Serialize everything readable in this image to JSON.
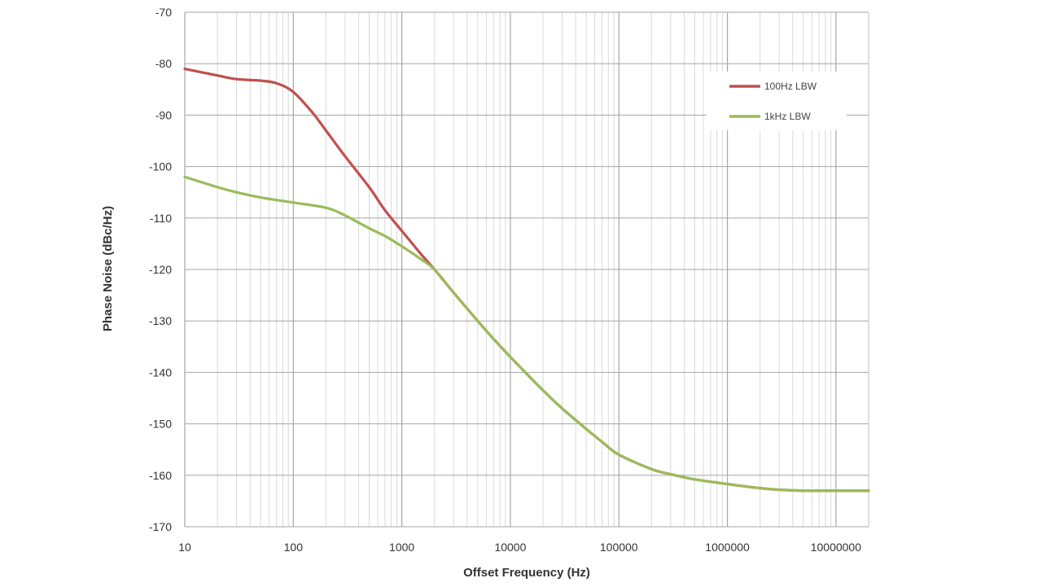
{
  "chart_data": {
    "type": "line",
    "xlabel": "Offset Frequency (Hz)",
    "ylabel": "Phase Noise (dBc/Hz)",
    "x_scale": "log",
    "xlim": [
      10,
      20000000
    ],
    "ylim": [
      -170,
      -70
    ],
    "x_ticks": [
      10,
      100,
      1000,
      10000,
      100000,
      1000000,
      10000000
    ],
    "x_tick_labels": [
      "10",
      "100",
      "1000",
      "10000",
      "100000",
      "1000000",
      "10000000"
    ],
    "y_ticks": [
      -70,
      -80,
      -90,
      -100,
      -110,
      -120,
      -130,
      -140,
      -150,
      -160,
      -170
    ],
    "y_tick_labels": [
      "-70",
      "-80",
      "-90",
      "-100",
      "-110",
      "-120",
      "-130",
      "-140",
      "-150",
      "-160",
      "-170"
    ],
    "grid": true,
    "legend": "top-right",
    "series": [
      {
        "name": "100Hz LBW",
        "color": "#c0504d",
        "points": [
          [
            10,
            -81
          ],
          [
            20,
            -82.3
          ],
          [
            30,
            -83
          ],
          [
            50,
            -83.3
          ],
          [
            70,
            -83.8
          ],
          [
            100,
            -85.5
          ],
          [
            150,
            -89.5
          ],
          [
            200,
            -93
          ],
          [
            300,
            -98
          ],
          [
            500,
            -104
          ],
          [
            700,
            -108.5
          ],
          [
            1000,
            -112.5
          ],
          [
            1500,
            -117
          ],
          [
            2000,
            -120
          ],
          [
            3000,
            -124.5
          ],
          [
            5000,
            -130
          ],
          [
            7000,
            -133.5
          ],
          [
            10000,
            -137
          ],
          [
            20000,
            -143.5
          ],
          [
            30000,
            -147
          ],
          [
            50000,
            -151
          ],
          [
            70000,
            -153.5
          ],
          [
            100000,
            -156
          ],
          [
            200000,
            -158.8
          ],
          [
            300000,
            -159.8
          ],
          [
            500000,
            -160.8
          ],
          [
            1000000,
            -161.7
          ],
          [
            2000000,
            -162.5
          ],
          [
            3000000,
            -162.8
          ],
          [
            5000000,
            -163
          ],
          [
            7000000,
            -163
          ],
          [
            10000000,
            -163
          ],
          [
            20000000,
            -163
          ]
        ]
      },
      {
        "name": "1kHz LBW",
        "color": "#9bbb59",
        "points": [
          [
            10,
            -102
          ],
          [
            20,
            -104
          ],
          [
            30,
            -105
          ],
          [
            50,
            -106
          ],
          [
            100,
            -107
          ],
          [
            200,
            -108
          ],
          [
            300,
            -109.5
          ],
          [
            500,
            -112
          ],
          [
            700,
            -113.5
          ],
          [
            1000,
            -115.5
          ],
          [
            1500,
            -118
          ],
          [
            2000,
            -120
          ],
          [
            3000,
            -124.5
          ],
          [
            5000,
            -130
          ],
          [
            7000,
            -133.5
          ],
          [
            10000,
            -137
          ],
          [
            20000,
            -143.5
          ],
          [
            30000,
            -147
          ],
          [
            50000,
            -151
          ],
          [
            70000,
            -153.5
          ],
          [
            100000,
            -156
          ],
          [
            200000,
            -158.8
          ],
          [
            300000,
            -159.8
          ],
          [
            500000,
            -160.8
          ],
          [
            1000000,
            -161.7
          ],
          [
            2000000,
            -162.5
          ],
          [
            3000000,
            -162.8
          ],
          [
            5000000,
            -163
          ],
          [
            7000000,
            -163
          ],
          [
            10000000,
            -163
          ],
          [
            20000000,
            -163
          ]
        ]
      }
    ]
  }
}
